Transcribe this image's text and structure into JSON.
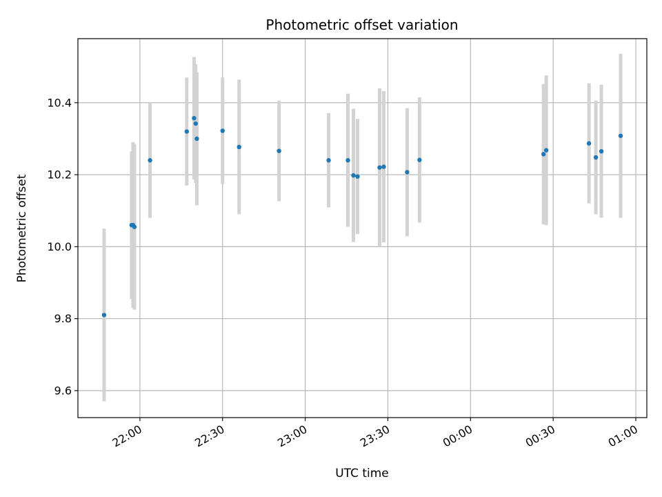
{
  "chart_data": {
    "type": "scatter",
    "title": "Photometric offset variation",
    "xlabel": "UTC time",
    "ylabel": "Photometric offset",
    "grid": true,
    "x_format": "HH:MM",
    "xlim": [
      "21:37:30",
      "01:04:00"
    ],
    "ylim": [
      9.525,
      10.578
    ],
    "x_ticks": [
      "22:00",
      "22:30",
      "23:00",
      "23:30",
      "00:00",
      "00:30",
      "01:00"
    ],
    "y_ticks": [
      "9.6",
      "9.8",
      "10.0",
      "10.2",
      "10.4"
    ],
    "y_tick_values": [
      9.6,
      9.8,
      10.0,
      10.2,
      10.4
    ],
    "colors": {
      "point": "#1f77b4",
      "errorbar": "#d3d3d3",
      "grid": "#b0b0b0"
    },
    "points": [
      {
        "x": "21:47:00",
        "y": 9.81,
        "err": 0.24
      },
      {
        "x": "21:57:00",
        "y": 10.06,
        "err": 0.205
      },
      {
        "x": "21:57:30",
        "y": 10.06,
        "err": 0.23
      },
      {
        "x": "21:58:00",
        "y": 10.055,
        "err": 0.23
      },
      {
        "x": "22:03:40",
        "y": 10.24,
        "err": 0.16
      },
      {
        "x": "22:17:00",
        "y": 10.32,
        "err": 0.15
      },
      {
        "x": "22:19:40",
        "y": 10.357,
        "err": 0.17
      },
      {
        "x": "22:20:15",
        "y": 10.342,
        "err": 0.165
      },
      {
        "x": "22:20:40",
        "y": 10.3,
        "err": 0.185
      },
      {
        "x": "22:30:00",
        "y": 10.322,
        "err": 0.148
      },
      {
        "x": "22:36:00",
        "y": 10.277,
        "err": 0.187
      },
      {
        "x": "22:50:30",
        "y": 10.266,
        "err": 0.14
      },
      {
        "x": "23:08:30",
        "y": 10.24,
        "err": 0.131
      },
      {
        "x": "23:15:30",
        "y": 10.24,
        "err": 0.185
      },
      {
        "x": "23:17:30",
        "y": 10.198,
        "err": 0.185
      },
      {
        "x": "23:19:00",
        "y": 10.195,
        "err": 0.16
      },
      {
        "x": "23:27:00",
        "y": 10.22,
        "err": 0.22
      },
      {
        "x": "23:28:30",
        "y": 10.222,
        "err": 0.21
      },
      {
        "x": "23:37:00",
        "y": 10.207,
        "err": 0.178
      },
      {
        "x": "23:41:30",
        "y": 10.241,
        "err": 0.174
      },
      {
        "x": "00:26:30",
        "y": 10.257,
        "err": 0.195
      },
      {
        "x": "00:27:30",
        "y": 10.268,
        "err": 0.208
      },
      {
        "x": "00:43:00",
        "y": 10.287,
        "err": 0.167
      },
      {
        "x": "00:45:30",
        "y": 10.248,
        "err": 0.158
      },
      {
        "x": "00:47:30",
        "y": 10.265,
        "err": 0.185
      },
      {
        "x": "00:54:30",
        "y": 10.308,
        "err": 0.228
      }
    ]
  }
}
